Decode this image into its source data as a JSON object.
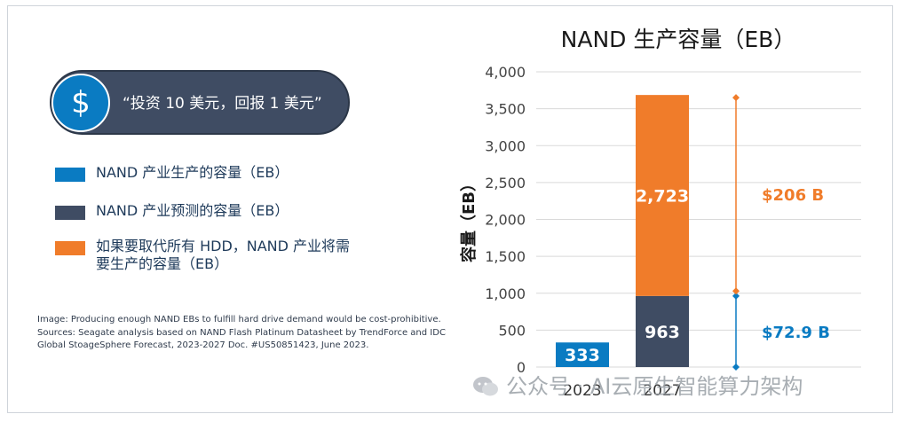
{
  "pill": {
    "icon": "dollar-sign-icon",
    "symbol": "$",
    "text": "“投资 10 美元，回报 1 美元”"
  },
  "legend": [
    {
      "label": "NAND 产业生产的容量（EB）",
      "color": "#0a7bc2"
    },
    {
      "label": "NAND 产业预测的容量（EB）",
      "color": "#3f4c63"
    },
    {
      "label": "如果要取代所有 HDD，NAND 产业将需要生产的容量（EB）",
      "color": "#f07c2a"
    }
  ],
  "caption": [
    "Image: Producing enough NAND EBs to fulfill hard drive demand would be cost-prohibitive.",
    "Sources: Seagate analysis based on NAND Flash Platinum Datasheet by TrendForce and IDC",
    "Global StoageSphere Forecast, 2023-2027 Doc. #US50851423, June 2023."
  ],
  "watermark": {
    "text": "公众号 · AI云原生智能算力架构",
    "icon": "wechat-icon"
  },
  "chart_data": {
    "type": "bar",
    "title": "NAND 生产容量（EB）",
    "ylabel": "容量（EB）",
    "ylim": [
      0,
      4000
    ],
    "yticks": [
      0,
      500,
      1000,
      1500,
      2000,
      2500,
      3000,
      3500,
      4000
    ],
    "ytick_labels": [
      "0",
      "500",
      "1,000",
      "1,500",
      "2,000",
      "2,500",
      "3,000",
      "3,500",
      "4,000"
    ],
    "categories": [
      "2023",
      "2027"
    ],
    "grid": true,
    "series": [
      {
        "name": "NAND 产业生产的容量（EB）",
        "color": "#0a7bc2",
        "values": [
          333,
          null
        ],
        "labels": [
          "333",
          ""
        ]
      },
      {
        "name": "NAND 产业预测的容量（EB）",
        "color": "#3f4c63",
        "values": [
          null,
          963
        ],
        "labels": [
          "",
          "963"
        ]
      },
      {
        "name": "如果要取代所有 HDD，NAND 产业将需要生产的容量（EB）",
        "color": "#f07c2a",
        "values": [
          null,
          2723
        ],
        "labels": [
          "",
          "2,723"
        ]
      }
    ],
    "annotations": [
      {
        "from": 0,
        "to": 963,
        "label": "$72.9 B",
        "color": "#0a7bc2"
      },
      {
        "from": 1030,
        "to": 3650,
        "label": "$206 B",
        "color": "#f07c2a"
      }
    ]
  }
}
